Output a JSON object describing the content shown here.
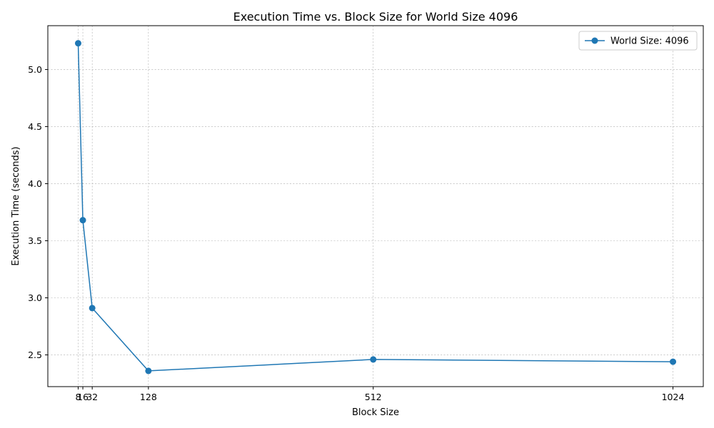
{
  "chart_data": {
    "type": "line",
    "title": "Execution Time vs. Block Size for World Size 4096",
    "xlabel": "Block Size",
    "ylabel": "Execution Time (seconds)",
    "x": [
      8,
      16,
      32,
      128,
      512,
      1024
    ],
    "xticks": [
      "8",
      "16",
      "32",
      "128",
      "512",
      "1024"
    ],
    "yticks": [
      "2.5",
      "3.0",
      "3.5",
      "4.0",
      "4.5",
      "5.0"
    ],
    "ytick_values": [
      2.5,
      3.0,
      3.5,
      4.0,
      4.5,
      5.0
    ],
    "xlim": [
      -43.8,
      1075.8
    ],
    "ylim": [
      2.222,
      5.384
    ],
    "grid": true,
    "legend_position": "top-right",
    "series": [
      {
        "name": "World Size: 4096",
        "color": "#1f77b4",
        "marker": "circle",
        "values": [
          5.23,
          3.68,
          2.91,
          2.36,
          2.46,
          2.44
        ]
      }
    ]
  }
}
